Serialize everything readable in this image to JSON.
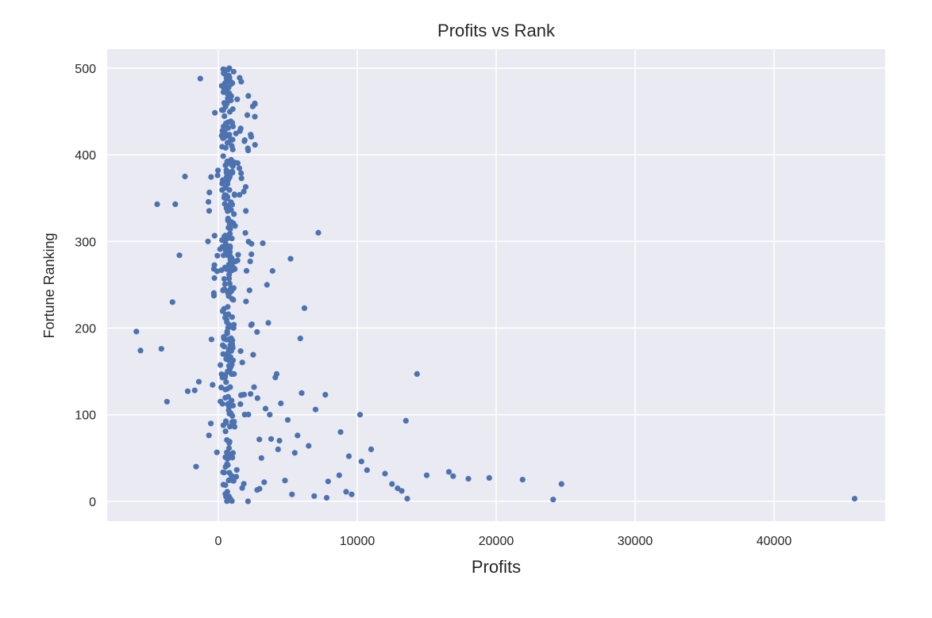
{
  "chart_data": {
    "type": "scatter",
    "title": "Profits vs Rank",
    "xlabel": "Profits",
    "ylabel": "Fortune Ranking",
    "xlim": [
      -8000,
      48000
    ],
    "ylim": [
      -23,
      522
    ],
    "xticks": [
      0,
      10000,
      20000,
      30000,
      40000
    ],
    "yticks": [
      0,
      100,
      200,
      300,
      400,
      500
    ],
    "grid": true,
    "legend": "none",
    "colors": {
      "background": "#eaeaf2",
      "grid": "#ffffff",
      "marker": "#4c72b0",
      "text": "#262626"
    },
    "outliers": [
      [
        45800,
        3
      ],
      [
        24700,
        20
      ],
      [
        24100,
        2
      ],
      [
        21900,
        25
      ],
      [
        19500,
        27
      ],
      [
        18000,
        26
      ],
      [
        16900,
        29
      ],
      [
        16600,
        34
      ],
      [
        15000,
        30
      ],
      [
        14300,
        147
      ],
      [
        13600,
        3
      ],
      [
        13500,
        93
      ],
      [
        13200,
        12
      ],
      [
        12900,
        15
      ],
      [
        12500,
        20
      ],
      [
        12000,
        32
      ],
      [
        11000,
        60
      ],
      [
        10700,
        36
      ],
      [
        10300,
        46
      ],
      [
        10200,
        100
      ],
      [
        9600,
        8
      ],
      [
        9400,
        52
      ],
      [
        9200,
        11
      ],
      [
        8800,
        80
      ],
      [
        8700,
        30
      ],
      [
        7900,
        23
      ],
      [
        7800,
        4
      ],
      [
        7700,
        123
      ],
      [
        7200,
        310
      ],
      [
        7000,
        106
      ],
      [
        6900,
        6
      ],
      [
        6500,
        64
      ],
      [
        6200,
        223
      ],
      [
        6000,
        125
      ],
      [
        5900,
        188
      ],
      [
        5700,
        76
      ],
      [
        5500,
        56
      ],
      [
        5300,
        8
      ],
      [
        5200,
        280
      ],
      [
        5000,
        94
      ],
      [
        4800,
        24
      ],
      [
        4500,
        113
      ],
      [
        4400,
        70
      ],
      [
        4300,
        60
      ],
      [
        4200,
        147
      ],
      [
        4100,
        143
      ],
      [
        3900,
        266
      ],
      [
        3800,
        72
      ],
      [
        3700,
        100
      ],
      [
        3600,
        206
      ],
      [
        3500,
        250
      ],
      [
        3400,
        107
      ],
      [
        3300,
        22
      ],
      [
        3200,
        298
      ],
      [
        3100,
        50
      ],
      [
        -5900,
        196
      ],
      [
        -5600,
        174
      ],
      [
        -4400,
        343
      ],
      [
        -4100,
        176
      ],
      [
        -3700,
        115
      ],
      [
        -3300,
        230
      ],
      [
        -3100,
        343
      ],
      [
        -2800,
        284
      ],
      [
        -2400,
        375
      ],
      [
        -2200,
        127
      ],
      [
        -1700,
        128
      ],
      [
        -1600,
        40
      ],
      [
        -1400,
        138
      ],
      [
        -1300,
        488
      ]
    ],
    "clusters": [
      {
        "r0": 0,
        "r1": 100,
        "n": 55,
        "xmin": -1000,
        "xmax": 3300
      },
      {
        "r0": 100,
        "r1": 200,
        "n": 75,
        "xmin": -600,
        "xmax": 3000
      },
      {
        "r0": 200,
        "r1": 300,
        "n": 80,
        "xmin": -400,
        "xmax": 2500
      },
      {
        "r0": 300,
        "r1": 400,
        "n": 90,
        "xmin": -800,
        "xmax": 2100
      },
      {
        "r0": 400,
        "r1": 500,
        "n": 85,
        "xmin": -300,
        "xmax": 2700
      }
    ]
  }
}
